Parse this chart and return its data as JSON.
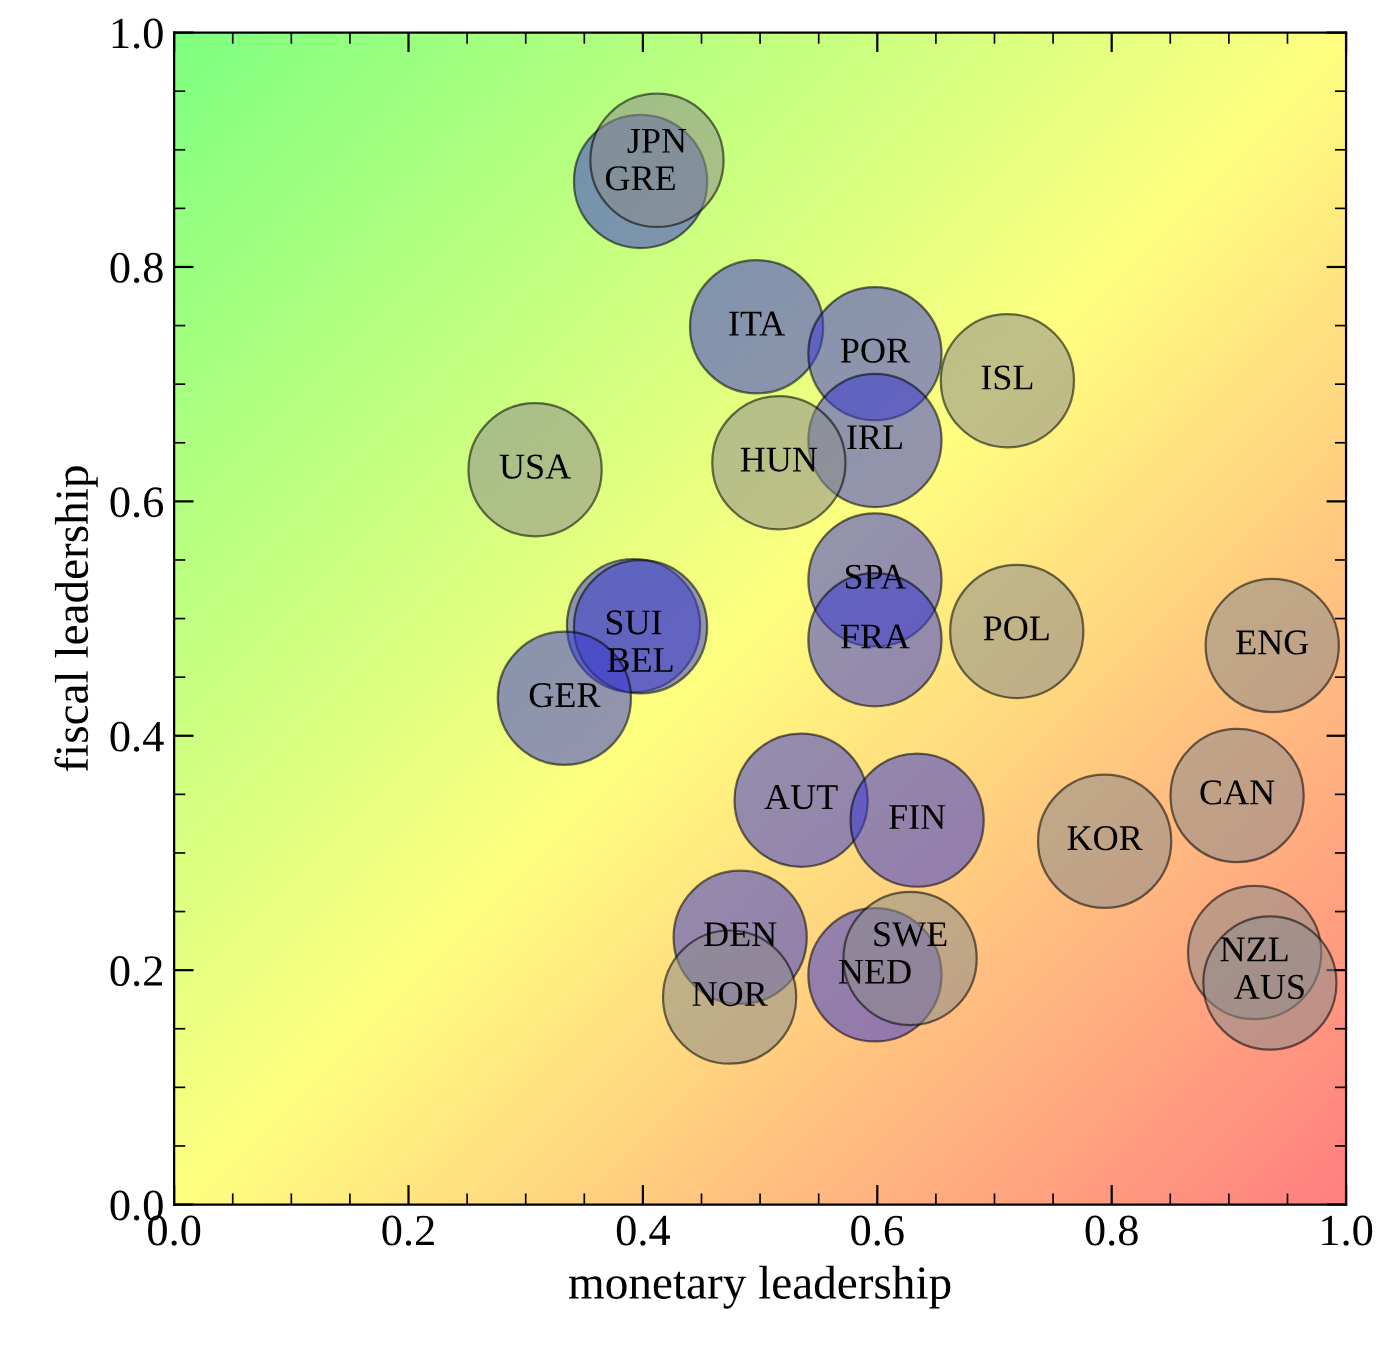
{
  "chart_data": {
    "type": "scatter",
    "xlabel": "monetary leadership",
    "ylabel": "fiscal leadership",
    "xlim": [
      0.0,
      1.0
    ],
    "ylim": [
      0.0,
      1.0
    ],
    "xticks": [
      {
        "value": 0,
        "label": "0.0"
      },
      {
        "value": 0.2,
        "label": "0.2"
      },
      {
        "value": 0.4,
        "label": "0.4"
      },
      {
        "value": 0.6,
        "label": "0.6"
      },
      {
        "value": 0.8,
        "label": "0.8"
      },
      {
        "value": 1,
        "label": "1.0"
      }
    ],
    "yticks": [
      {
        "value": 0,
        "label": "0.0"
      },
      {
        "value": 0.2,
        "label": "0.2"
      },
      {
        "value": 0.4,
        "label": "0.4"
      },
      {
        "value": 0.6,
        "label": "0.6"
      },
      {
        "value": 0.8,
        "label": "0.8"
      },
      {
        "value": 1,
        "label": "1.0"
      }
    ],
    "grid": false,
    "marker": "circle",
    "series": [
      {
        "color": "#3c3cd0",
        "x": [
          0.398,
          0.497,
          0.598,
          0.598,
          0.598,
          0.598,
          0.392,
          0.398,
          0.333,
          0.535,
          0.634,
          0.483,
          0.598
        ],
        "values": [
          0.873,
          0.749,
          0.726,
          0.652,
          0.533,
          0.482,
          0.494,
          0.493,
          0.432,
          0.345,
          0.328,
          0.228,
          0.196
        ],
        "value_labels": [
          "GRE",
          "ITA",
          "POR",
          "IRL",
          "SPA",
          "FRA",
          "SUI",
          "BEL",
          "GER",
          "AUT",
          "FIN",
          "DEN",
          "NED"
        ]
      },
      {
        "color": "#8c8c8c",
        "x": [
          0.412,
          0.711,
          0.308,
          0.516,
          0.719,
          0.937,
          0.794,
          0.907,
          0.474,
          0.628,
          0.922,
          0.935
        ],
        "values": [
          0.891,
          0.703,
          0.627,
          0.633,
          0.489,
          0.477,
          0.31,
          0.349,
          0.177,
          0.21,
          0.215,
          0.189
        ],
        "value_labels": [
          "JPN",
          "ISL",
          "USA",
          "HUN",
          "POL",
          "ENG",
          "KOR",
          "CAN",
          "NOR",
          "SWE",
          "NZL",
          "AUS"
        ]
      }
    ]
  }
}
